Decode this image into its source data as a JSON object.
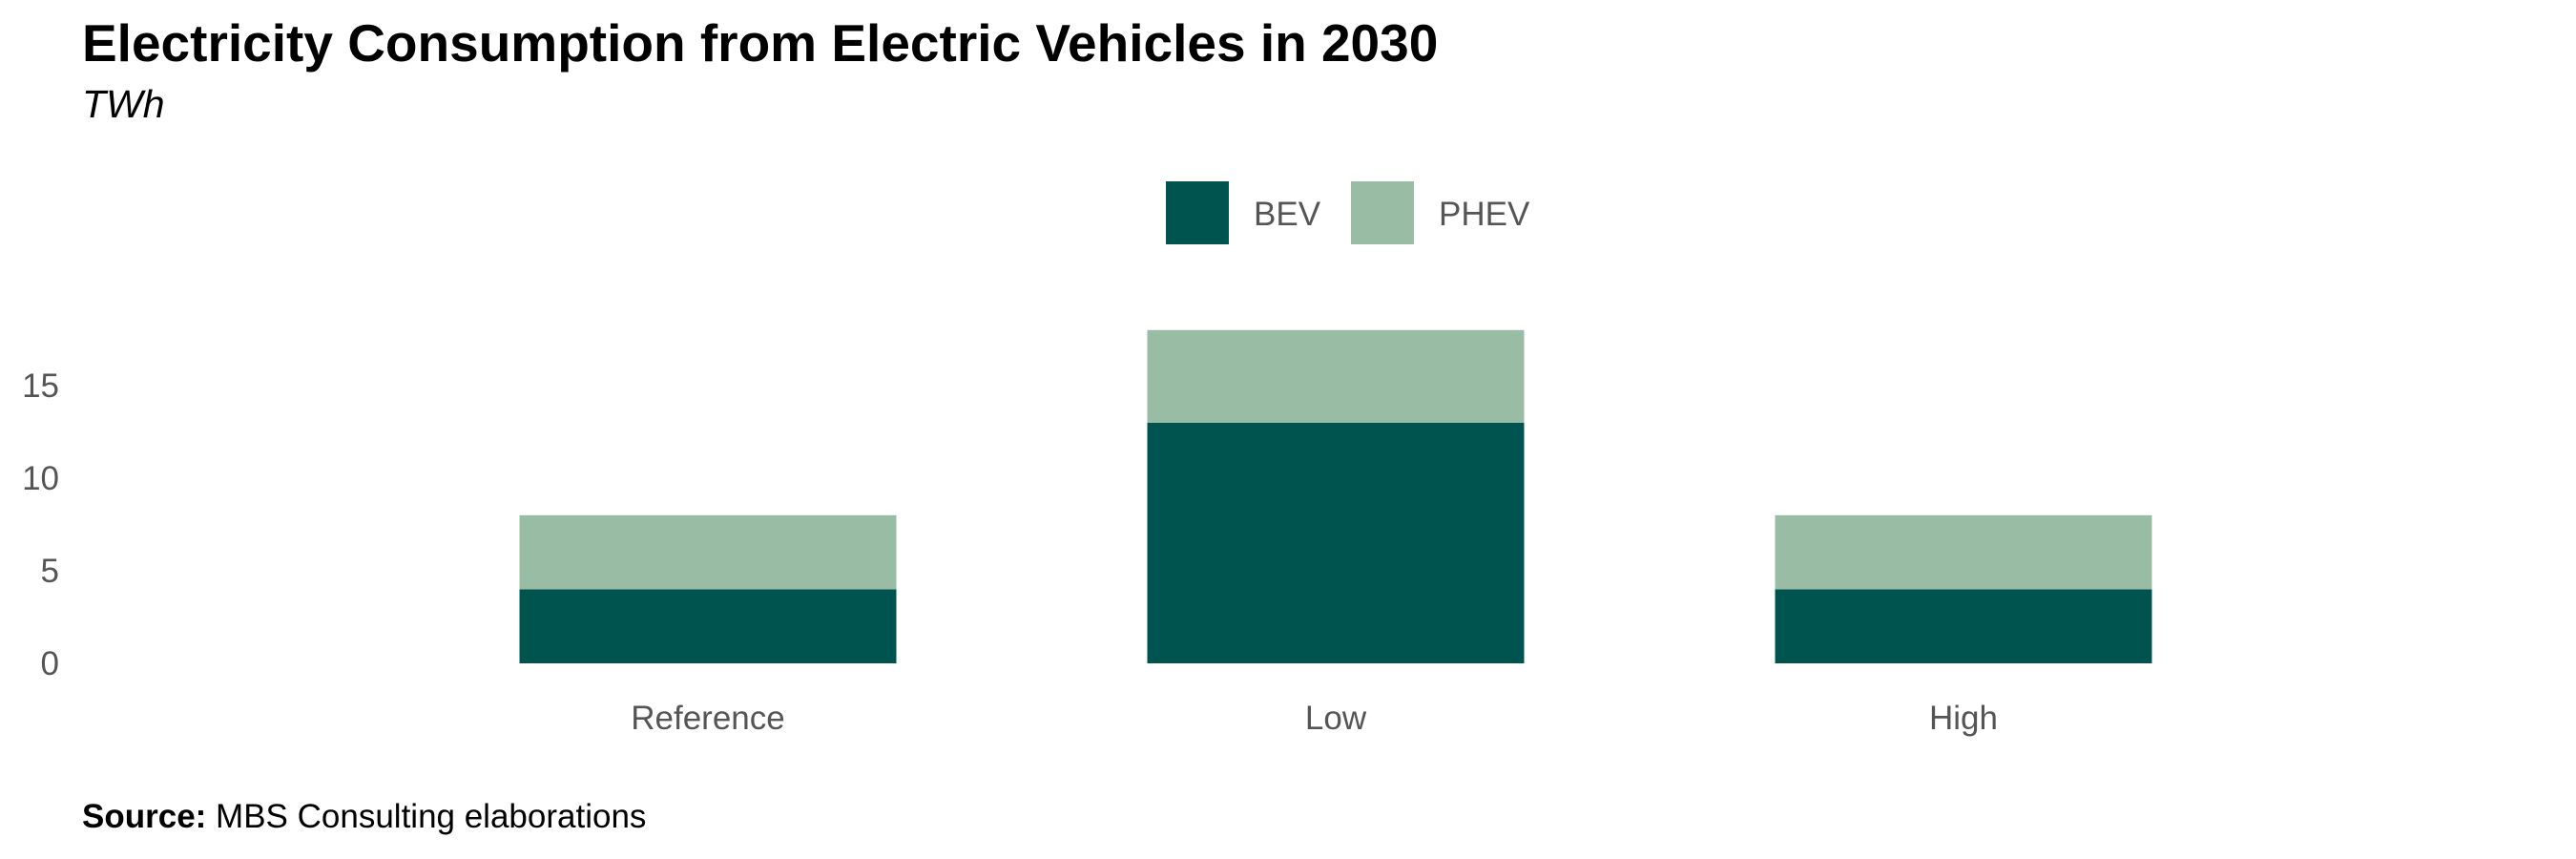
{
  "title": "Electricity Consumption from Electric Vehicles in 2030",
  "subtitle": "TWh",
  "source": {
    "label": "Source:",
    "text": "MBS Consulting elaborations"
  },
  "colors": {
    "BEV": "#005450",
    "PHEV": "#99bca5"
  },
  "chart_data": {
    "type": "bar",
    "stacked": true,
    "categories": [
      "Reference",
      "Low",
      "High"
    ],
    "series": [
      {
        "name": "BEV",
        "values": [
          4,
          13,
          4
        ]
      },
      {
        "name": "PHEV",
        "values": [
          4,
          5,
          4
        ]
      }
    ],
    "title": "Electricity Consumption from Electric Vehicles in 2030",
    "subtitle": "TWh",
    "xlabel": "",
    "ylabel": "",
    "yticks": [
      0,
      5,
      10,
      15
    ],
    "ylim": [
      0,
      18
    ],
    "grid": false,
    "legend": "top-center"
  }
}
